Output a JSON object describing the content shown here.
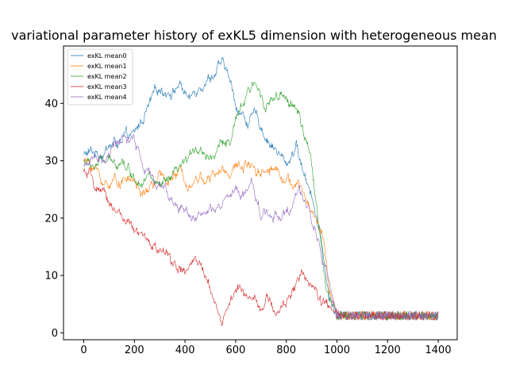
{
  "chart_data": {
    "type": "line",
    "title": "variational parameter history of exKL5 dimension with heterogeneous mean",
    "xlabel": "",
    "ylabel": "",
    "xlim": [
      -80,
      1475
    ],
    "ylim": [
      -1.2,
      50.0
    ],
    "xticks": [
      0,
      200,
      400,
      600,
      800,
      1000,
      1200,
      1400
    ],
    "yticks": [
      0,
      10,
      20,
      30,
      40
    ],
    "grid": false,
    "legend_position": "top-left",
    "series": [
      {
        "name": "exKL mean0",
        "color": "#1f77b4",
        "keypoints": [
          [
            0,
            31
          ],
          [
            60,
            31.5
          ],
          [
            120,
            33
          ],
          [
            200,
            34
          ],
          [
            240,
            38
          ],
          [
            300,
            42.5
          ],
          [
            350,
            42.5
          ],
          [
            380,
            43.5
          ],
          [
            420,
            40.5
          ],
          [
            460,
            44
          ],
          [
            500,
            45
          ],
          [
            540,
            46.5
          ],
          [
            560,
            46
          ],
          [
            600,
            40
          ],
          [
            640,
            37
          ],
          [
            680,
            37.5
          ],
          [
            720,
            34.5
          ],
          [
            760,
            32
          ],
          [
            800,
            29
          ],
          [
            840,
            33
          ],
          [
            860,
            29
          ],
          [
            900,
            25
          ],
          [
            940,
            15
          ],
          [
            970,
            6
          ],
          [
            1000,
            3
          ],
          [
            1050,
            3
          ],
          [
            1400,
            3
          ]
        ]
      },
      {
        "name": "exKL mean1",
        "color": "#ff7f0e",
        "keypoints": [
          [
            0,
            30
          ],
          [
            40,
            29
          ],
          [
            80,
            26
          ],
          [
            120,
            26.5
          ],
          [
            160,
            27
          ],
          [
            200,
            26.5
          ],
          [
            240,
            23.5
          ],
          [
            270,
            26
          ],
          [
            300,
            26.5
          ],
          [
            340,
            27
          ],
          [
            380,
            27.5
          ],
          [
            420,
            27
          ],
          [
            460,
            27.5
          ],
          [
            500,
            27
          ],
          [
            540,
            28
          ],
          [
            580,
            28.5
          ],
          [
            620,
            29
          ],
          [
            660,
            30
          ],
          [
            700,
            28.5
          ],
          [
            740,
            29
          ],
          [
            780,
            28.5
          ],
          [
            820,
            26
          ],
          [
            860,
            25
          ],
          [
            890,
            22
          ],
          [
            920,
            20
          ],
          [
            950,
            16
          ],
          [
            970,
            8
          ],
          [
            1000,
            3
          ],
          [
            1050,
            3
          ],
          [
            1400,
            3
          ]
        ]
      },
      {
        "name": "exKL mean2",
        "color": "#2ca02c",
        "keypoints": [
          [
            0,
            30
          ],
          [
            40,
            29
          ],
          [
            80,
            30
          ],
          [
            120,
            29
          ],
          [
            150,
            31
          ],
          [
            200,
            27
          ],
          [
            250,
            28
          ],
          [
            300,
            25
          ],
          [
            340,
            26
          ],
          [
            380,
            28
          ],
          [
            420,
            30
          ],
          [
            440,
            33
          ],
          [
            480,
            31.5
          ],
          [
            520,
            31.5
          ],
          [
            560,
            34
          ],
          [
            580,
            33
          ],
          [
            620,
            39
          ],
          [
            660,
            42
          ],
          [
            680,
            43
          ],
          [
            720,
            40.5
          ],
          [
            760,
            41
          ],
          [
            800,
            40
          ],
          [
            840,
            39.5
          ],
          [
            860,
            36
          ],
          [
            900,
            29
          ],
          [
            930,
            18
          ],
          [
            960,
            8
          ],
          [
            980,
            5
          ],
          [
            1000,
            3
          ],
          [
            1050,
            3
          ],
          [
            1400,
            3
          ]
        ]
      },
      {
        "name": "exKL mean3",
        "color": "#d62728",
        "keypoints": [
          [
            0,
            28
          ],
          [
            40,
            26
          ],
          [
            80,
            23
          ],
          [
            120,
            22
          ],
          [
            160,
            20
          ],
          [
            200,
            17
          ],
          [
            240,
            16
          ],
          [
            280,
            15
          ],
          [
            320,
            13.5
          ],
          [
            360,
            12
          ],
          [
            400,
            10
          ],
          [
            440,
            12.5
          ],
          [
            480,
            9.5
          ],
          [
            520,
            6
          ],
          [
            545,
            1.5
          ],
          [
            560,
            4
          ],
          [
            600,
            7.5
          ],
          [
            640,
            6.5
          ],
          [
            680,
            7
          ],
          [
            700,
            5
          ],
          [
            720,
            6
          ],
          [
            760,
            3.5
          ],
          [
            800,
            5
          ],
          [
            840,
            9.5
          ],
          [
            880,
            10
          ],
          [
            910,
            7.5
          ],
          [
            940,
            5
          ],
          [
            970,
            4
          ],
          [
            1000,
            3
          ],
          [
            1050,
            3
          ],
          [
            1400,
            3
          ]
        ]
      },
      {
        "name": "exKL mean4",
        "color": "#9467bd",
        "keypoints": [
          [
            0,
            29.5
          ],
          [
            40,
            30
          ],
          [
            80,
            30
          ],
          [
            120,
            32
          ],
          [
            150,
            34
          ],
          [
            200,
            33
          ],
          [
            240,
            29
          ],
          [
            280,
            25.5
          ],
          [
            320,
            26
          ],
          [
            340,
            23.5
          ],
          [
            360,
            22.5
          ],
          [
            400,
            21.5
          ],
          [
            440,
            21
          ],
          [
            480,
            20.5
          ],
          [
            520,
            21
          ],
          [
            560,
            22.5
          ],
          [
            600,
            24.5
          ],
          [
            620,
            23
          ],
          [
            660,
            26
          ],
          [
            700,
            21
          ],
          [
            740,
            20.5
          ],
          [
            780,
            21
          ],
          [
            820,
            21
          ],
          [
            850,
            25
          ],
          [
            870,
            22
          ],
          [
            900,
            20
          ],
          [
            930,
            16
          ],
          [
            960,
            10
          ],
          [
            990,
            4
          ],
          [
            1010,
            3
          ],
          [
            1050,
            3
          ],
          [
            1400,
            3
          ]
        ]
      }
    ]
  }
}
